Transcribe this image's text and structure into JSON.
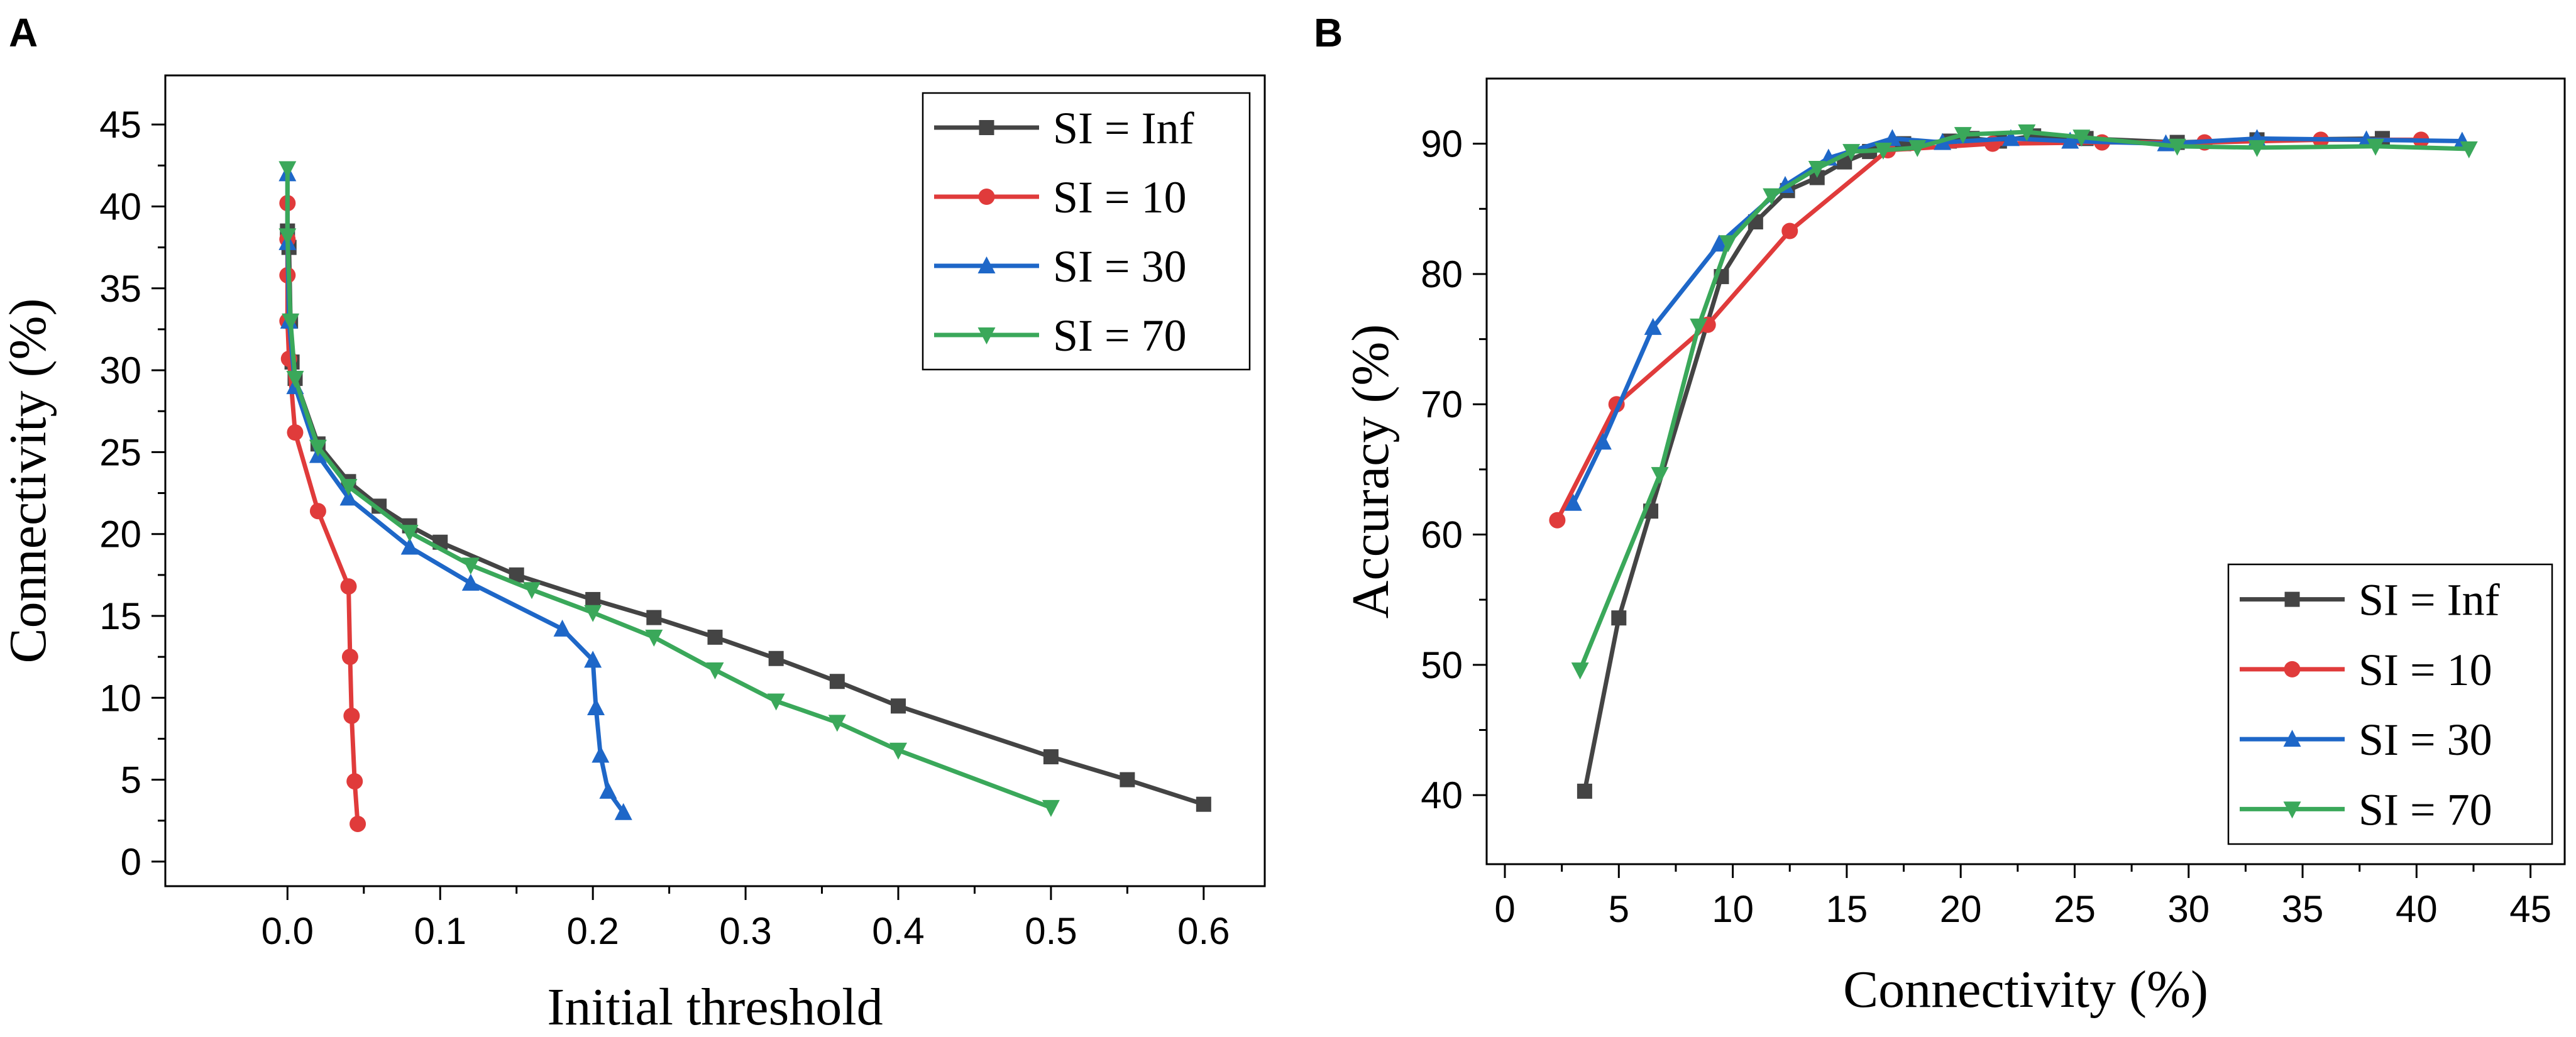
{
  "chart_data": [
    {
      "panel": "A",
      "type": "line",
      "xlabel": "Initial threshold",
      "ylabel": "Connectivity (%)",
      "xlim": [
        -0.08,
        0.64
      ],
      "ylim": [
        -1.5,
        48
      ],
      "xticks": [
        0.0,
        0.1,
        0.2,
        0.3,
        0.4,
        0.5,
        0.6
      ],
      "xtick_labels": [
        "0.0",
        "0.1",
        "0.2",
        "0.3",
        "0.4",
        "0.5",
        "0.6"
      ],
      "yticks": [
        0,
        5,
        10,
        15,
        20,
        25,
        30,
        35,
        40,
        45
      ],
      "ytick_labels": [
        "0",
        "5",
        "10",
        "15",
        "20",
        "25",
        "30",
        "35",
        "40",
        "45"
      ],
      "legend_position": "top-right",
      "series": [
        {
          "name": "SI = Inf",
          "color": "#444444",
          "marker": "square",
          "x": [
            0,
            0.001,
            0.002,
            0.003,
            0.005,
            0.02,
            0.04,
            0.06,
            0.08,
            0.1,
            0.15,
            0.2,
            0.24,
            0.28,
            0.32,
            0.36,
            0.4,
            0.5,
            0.55,
            0.6
          ],
          "y": [
            38.5,
            37.5,
            33.0,
            30.5,
            29.5,
            25.5,
            23.2,
            21.7,
            20.5,
            19.5,
            17.5,
            16.0,
            14.9,
            13.7,
            12.4,
            11.0,
            9.5,
            6.4,
            5.0,
            3.5
          ]
        },
        {
          "name": "SI = 10",
          "color": "#e03b3b",
          "marker": "circle",
          "x": [
            0,
            0,
            0,
            0,
            0.001,
            0.005,
            0.02,
            0.04,
            0.041,
            0.042,
            0.044,
            0.046
          ],
          "y": [
            40.2,
            38.0,
            35.8,
            33.0,
            30.7,
            26.2,
            21.4,
            16.8,
            12.5,
            8.9,
            4.9,
            2.3
          ]
        },
        {
          "name": "SI = 30",
          "color": "#1e67c8",
          "marker": "triangle-up",
          "x": [
            0,
            0,
            0.001,
            0.005,
            0.02,
            0.04,
            0.08,
            0.12,
            0.18,
            0.2,
            0.202,
            0.205,
            0.21,
            0.22
          ],
          "y": [
            42.0,
            37.8,
            33.0,
            29.0,
            24.8,
            22.2,
            19.2,
            17.0,
            14.2,
            12.3,
            9.4,
            6.5,
            4.3,
            3.0
          ]
        },
        {
          "name": "SI = 70",
          "color": "#3aa85a",
          "marker": "triangle-down",
          "x": [
            0,
            0,
            0.002,
            0.005,
            0.02,
            0.04,
            0.08,
            0.12,
            0.16,
            0.2,
            0.24,
            0.28,
            0.32,
            0.36,
            0.4,
            0.5
          ],
          "y": [
            42.3,
            38.2,
            33.0,
            29.5,
            25.3,
            22.9,
            20.1,
            18.1,
            16.6,
            15.2,
            13.7,
            11.7,
            9.8,
            8.5,
            6.8,
            3.3
          ]
        }
      ]
    },
    {
      "panel": "B",
      "type": "line",
      "xlabel": "Connectivity (%)",
      "ylabel": "Accuracy (%)",
      "xlim": [
        -0.8,
        46.5
      ],
      "ylim": [
        34.7,
        95
      ],
      "xticks": [
        0,
        5,
        10,
        15,
        20,
        25,
        30,
        35,
        40,
        45
      ],
      "xtick_labels": [
        "0",
        "5",
        "10",
        "15",
        "20",
        "25",
        "30",
        "35",
        "40",
        "45"
      ],
      "yticks": [
        40,
        50,
        60,
        70,
        80,
        90
      ],
      "ytick_labels": [
        "40",
        "50",
        "60",
        "70",
        "80",
        "90"
      ],
      "legend_position": "bottom-right",
      "series": [
        {
          "name": "SI = Inf",
          "color": "#444444",
          "marker": "square",
          "x": [
            3.5,
            5.0,
            6.4,
            9.5,
            11.0,
            12.4,
            13.7,
            14.9,
            16.0,
            17.5,
            19.5,
            20.5,
            21.7,
            23.2,
            25.5,
            29.5,
            33.0,
            38.5
          ],
          "y": [
            40.3,
            53.6,
            61.8,
            79.8,
            84.0,
            86.4,
            87.4,
            88.6,
            89.4,
            90.0,
            90.2,
            90.4,
            90.2,
            90.6,
            90.4,
            90.1,
            90.3,
            90.4
          ]
        },
        {
          "name": "SI = 10",
          "color": "#e03b3b",
          "marker": "circle",
          "x": [
            2.3,
            4.9,
            8.9,
            12.5,
            16.8,
            21.4,
            26.2,
            30.7,
            35.8,
            40.2
          ],
          "y": [
            61.1,
            70.0,
            76.1,
            83.3,
            89.5,
            90.0,
            90.1,
            90.1,
            90.3,
            90.3
          ]
        },
        {
          "name": "SI = 30",
          "color": "#1e67c8",
          "marker": "triangle-up",
          "x": [
            3.0,
            4.3,
            6.5,
            9.4,
            12.3,
            14.2,
            17.0,
            19.2,
            22.2,
            24.8,
            29.0,
            33.0,
            37.8,
            42.0
          ],
          "y": [
            62.4,
            67.1,
            75.9,
            82.3,
            86.8,
            88.9,
            90.4,
            90.1,
            90.4,
            90.2,
            90.0,
            90.4,
            90.3,
            90.2
          ]
        },
        {
          "name": "SI = 70",
          "color": "#3aa85a",
          "marker": "triangle-down",
          "x": [
            3.3,
            6.8,
            8.5,
            9.8,
            11.7,
            13.7,
            15.2,
            16.6,
            18.1,
            20.1,
            22.9,
            25.3,
            29.5,
            33.0,
            38.2,
            42.3
          ],
          "y": [
            49.6,
            64.6,
            76.0,
            82.4,
            86.0,
            88.1,
            89.4,
            89.5,
            89.7,
            90.7,
            90.9,
            90.5,
            89.8,
            89.7,
            89.8,
            89.6
          ]
        }
      ]
    }
  ]
}
